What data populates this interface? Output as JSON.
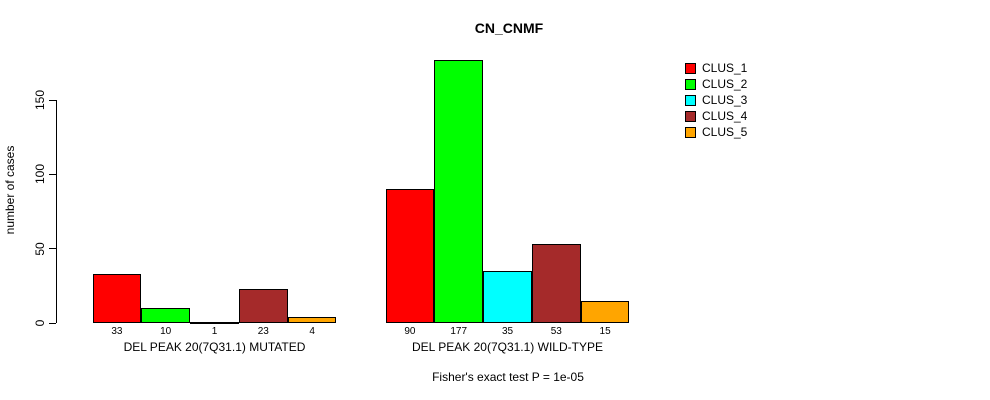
{
  "title": "CN_CNMF",
  "footer": "Fisher's exact test P = 1e-05",
  "chart_data": {
    "type": "bar",
    "title": "CN_CNMF",
    "xlabel": "",
    "ylabel": "number of cases",
    "annotation": "Fisher's exact test P = 1e-05",
    "grid": false,
    "legend_position": "right",
    "ylim": [
      0,
      177
    ],
    "yticks": [
      0,
      50,
      100,
      150
    ],
    "categories": [
      "DEL PEAK 20(7Q31.1) MUTATED",
      "DEL PEAK 20(7Q31.1) WILD-TYPE"
    ],
    "bar_value_labels": [
      [
        33,
        10,
        1,
        23,
        4
      ],
      [
        90,
        177,
        35,
        53,
        15
      ]
    ],
    "series": [
      {
        "name": "CLUS_1",
        "color": "#FF0000",
        "values": [
          33,
          90
        ]
      },
      {
        "name": "CLUS_2",
        "color": "#00FF00",
        "values": [
          10,
          177
        ]
      },
      {
        "name": "CLUS_3",
        "color": "#00FFFF",
        "values": [
          1,
          35
        ]
      },
      {
        "name": "CLUS_4",
        "color": "#A52A2A",
        "values": [
          23,
          53
        ]
      },
      {
        "name": "CLUS_5",
        "color": "#FFA500",
        "values": [
          4,
          15
        ]
      }
    ]
  }
}
